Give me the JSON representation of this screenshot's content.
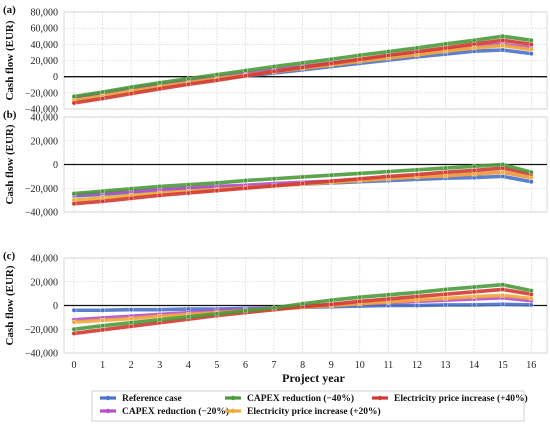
{
  "chart_data": {
    "type": "line",
    "xlabel": "Project year",
    "ylabel": "Cash flow (EUR)",
    "x": [
      0,
      1,
      2,
      3,
      4,
      5,
      6,
      7,
      8,
      9,
      10,
      11,
      12,
      13,
      14,
      15,
      16
    ],
    "xticks": [
      "0",
      "1",
      "2",
      "3",
      "4",
      "5",
      "6",
      "7",
      "8",
      "9",
      "10",
      "11",
      "12",
      "13",
      "14",
      "15",
      "16"
    ],
    "legend": {
      "placement": "bottom",
      "entries": [
        "Reference case",
        "CAPEX reduction (−40%)",
        "Electricity price increase (+40%)",
        "CAPEX reduction (−20%)",
        "Electricity price increase (+20%)"
      ]
    },
    "series_styles": {
      "Reference case": "#4a72c8",
      "CAPEX reduction (−20%)": "#b54fc8",
      "CAPEX reduction (−40%)": "#4a9a3a",
      "Electricity price increase (+20%)": "#f2a93b",
      "Electricity price increase (+40%)": "#d23a32"
    },
    "panels": [
      {
        "label": "(a)",
        "ylim": [
          -40000,
          80000
        ],
        "yticks": [
          -40000,
          -20000,
          0,
          20000,
          40000,
          60000,
          80000
        ],
        "ytick_labels": [
          "−40,000",
          "−20,000",
          "0",
          "20,000",
          "40,000",
          "60,000",
          "80,000"
        ],
        "series": [
          {
            "name": "Reference case",
            "values": [
              -27500,
              -22000,
              -16000,
              -11000,
              -6500,
              -2500,
              1000,
              4500,
              8500,
              12500,
              16500,
              20500,
              24500,
              28000,
              31500,
              33000,
              28500
            ]
          },
          {
            "name": "CAPEX reduction (−20%)",
            "values": [
              -26000,
              -20500,
              -14500,
              -9000,
              -4500,
              0,
              4000,
              8500,
              12500,
              16500,
              20500,
              24500,
              28500,
              33000,
              37000,
              40000,
              35500
            ]
          },
          {
            "name": "CAPEX reduction (−40%)",
            "values": [
              -24500,
              -19000,
              -13000,
              -7500,
              -2500,
              2500,
              7500,
              12500,
              17000,
              21500,
              26500,
              31000,
              35500,
              40500,
              45000,
              50000,
              45000
            ]
          },
          {
            "name": "Electricity price increase (+20%)",
            "values": [
              -29500,
              -24000,
              -18000,
              -12500,
              -7500,
              -2500,
              1500,
              6000,
              10500,
              14500,
              19000,
              23000,
              27000,
              31500,
              35500,
              38500,
              33500
            ]
          },
          {
            "name": "Electricity price increase (+40%)",
            "values": [
              -32500,
              -27000,
              -21000,
              -15000,
              -9500,
              -4500,
              1000,
              6500,
              11500,
              16500,
              21500,
              26500,
              31000,
              35500,
              40500,
              45000,
              40000
            ]
          }
        ]
      },
      {
        "label": "(b)",
        "ylim": [
          -40000,
          40000
        ],
        "yticks": [
          -40000,
          -20000,
          0,
          20000,
          40000
        ],
        "ytick_labels": [
          "−40,000",
          "−20,000",
          "0",
          "20,000",
          "40,000"
        ],
        "series": [
          {
            "name": "Reference case",
            "values": [
              -26500,
              -25000,
              -23500,
              -22000,
              -20500,
              -19500,
              -18500,
              -17500,
              -16500,
              -15500,
              -14500,
              -13500,
              -12500,
              -11500,
              -11000,
              -10000,
              -14500
            ]
          },
          {
            "name": "CAPEX reduction (−20%)",
            "values": [
              -25500,
              -24000,
              -22500,
              -21000,
              -19500,
              -18500,
              -17500,
              -16000,
              -15000,
              -14000,
              -13000,
              -11500,
              -10500,
              -9500,
              -8000,
              -6500,
              -11000
            ]
          },
          {
            "name": "CAPEX reduction (−40%)",
            "values": [
              -24500,
              -22500,
              -20500,
              -18500,
              -17000,
              -15500,
              -13500,
              -12000,
              -10500,
              -9000,
              -7500,
              -6000,
              -4500,
              -3000,
              -1500,
              0,
              -6500
            ]
          },
          {
            "name": "Electricity price increase (+20%)",
            "values": [
              -30000,
              -28000,
              -26000,
              -24000,
              -22500,
              -21000,
              -19500,
              -18000,
              -16500,
              -15000,
              -13500,
              -12000,
              -10500,
              -9500,
              -8000,
              -6500,
              -11000
            ]
          },
          {
            "name": "Electricity price increase (+40%)",
            "values": [
              -33000,
              -31000,
              -28500,
              -26000,
              -24000,
              -22000,
              -20000,
              -18000,
              -16000,
              -14000,
              -12000,
              -10000,
              -8500,
              -6500,
              -5000,
              -3000,
              -8000
            ]
          }
        ]
      },
      {
        "label": "(c)",
        "ylim": [
          -40000,
          40000
        ],
        "yticks": [
          -40000,
          -20000,
          0,
          20000,
          40000
        ],
        "ytick_labels": [
          "−40,000",
          "−20,000",
          "0",
          "20,000",
          "40,000"
        ],
        "series": [
          {
            "name": "Reference case",
            "values": [
              -4000,
              -4000,
              -3500,
              -3500,
              -3000,
              -3000,
              -2500,
              -2000,
              -1500,
              -1000,
              -500,
              0,
              0,
              500,
              500,
              1000,
              500
            ]
          },
          {
            "name": "CAPEX reduction (−20%)",
            "values": [
              -12000,
              -10500,
              -9000,
              -7500,
              -6000,
              -4500,
              -3500,
              -2000,
              -500,
              500,
              1500,
              2500,
              3500,
              4500,
              5500,
              6500,
              4000
            ]
          },
          {
            "name": "CAPEX reduction (−40%)",
            "values": [
              -20000,
              -17000,
              -14500,
              -12000,
              -9500,
              -7000,
              -4500,
              -2000,
              1500,
              4500,
              7000,
              9000,
              11000,
              13500,
              15500,
              17500,
              12500
            ]
          },
          {
            "name": "Electricity price increase (+20%)",
            "values": [
              -14000,
              -12500,
              -11000,
              -9000,
              -7500,
              -6000,
              -4500,
              -3000,
              -1500,
              0,
              1500,
              3000,
              4500,
              6000,
              7500,
              8500,
              6000
            ]
          },
          {
            "name": "Electricity price increase (+40%)",
            "values": [
              -23500,
              -20500,
              -17500,
              -14500,
              -11500,
              -8500,
              -6000,
              -3500,
              -1000,
              1000,
              3500,
              5500,
              7500,
              9500,
              11500,
              13500,
              9500
            ]
          }
        ]
      }
    ]
  }
}
